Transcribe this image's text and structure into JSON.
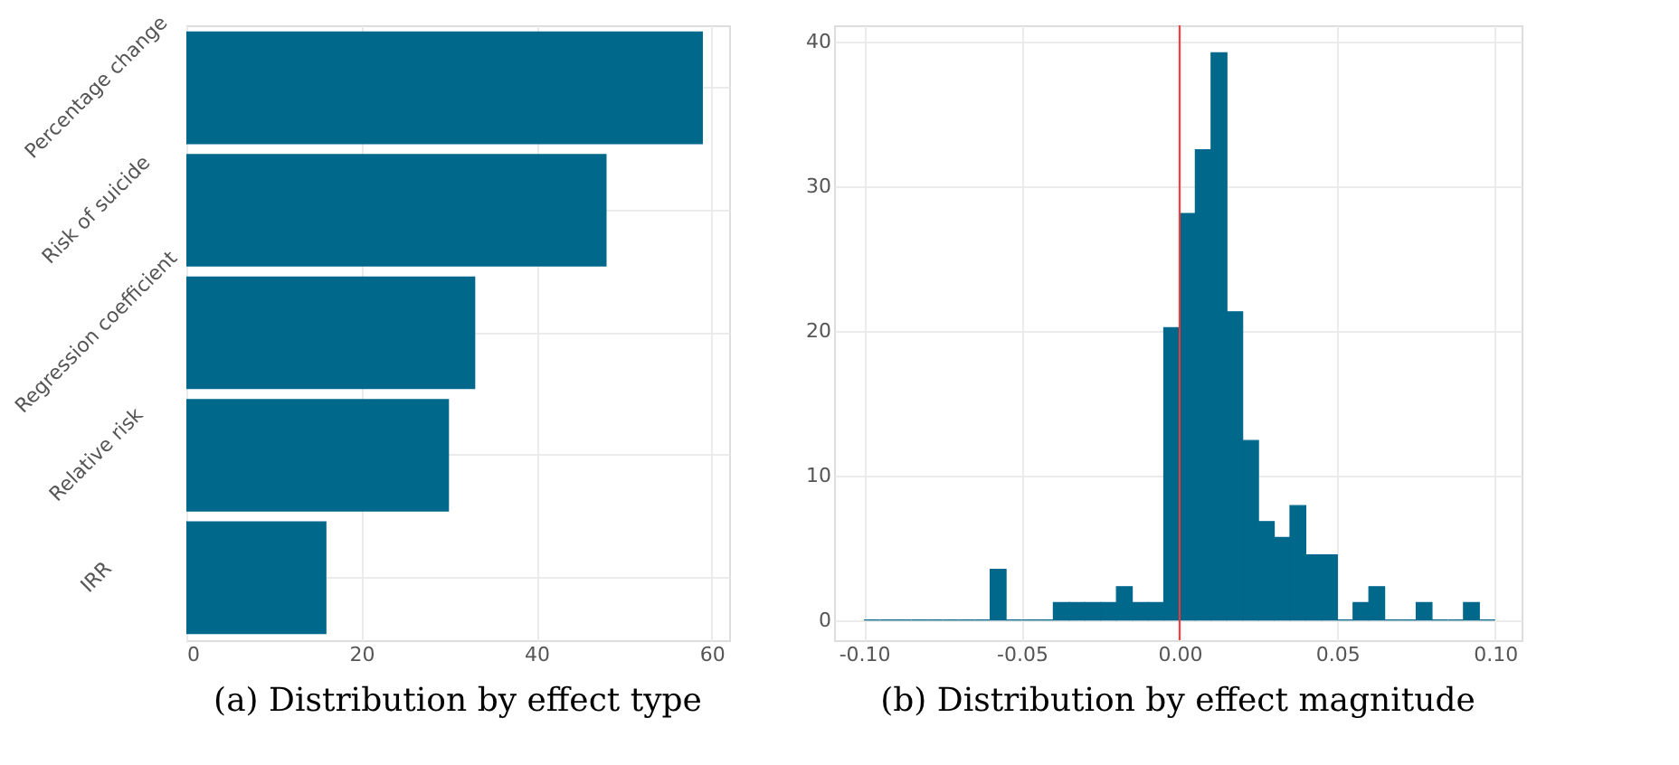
{
  "chart_data": [
    {
      "type": "bar",
      "orientation": "horizontal",
      "title": "(a) Distribution by effect type",
      "categories": [
        "Percentage change",
        "Risk of suicide",
        "Regression coefficient",
        "Relative risk",
        "IRR"
      ],
      "values": [
        59,
        48,
        33,
        30,
        16
      ],
      "color": "#00688b",
      "xlim": [
        0,
        62
      ],
      "xticks": [
        0,
        20,
        40,
        60
      ],
      "grid": true
    },
    {
      "type": "histogram",
      "title": "(b) Distribution by effect magnitude",
      "bins": [
        -0.1,
        -0.095,
        -0.09,
        -0.085,
        -0.08,
        -0.075,
        -0.07,
        -0.065,
        -0.06,
        -0.055,
        -0.05,
        -0.045,
        -0.04,
        -0.035,
        -0.03,
        -0.025,
        -0.02,
        -0.015,
        -0.01,
        -0.005,
        0.0,
        0.005,
        0.01,
        0.015,
        0.02,
        0.025,
        0.03,
        0.035,
        0.04,
        0.045,
        0.05,
        0.055,
        0.06,
        0.065,
        0.07,
        0.075,
        0.08,
        0.085,
        0.09,
        0.095,
        0.1
      ],
      "values": [
        0,
        0,
        0,
        0,
        0,
        0,
        0,
        0,
        3.5,
        0,
        0,
        0,
        1.2,
        1.2,
        1.2,
        1.2,
        2.3,
        1.2,
        1.2,
        20.2,
        28.1,
        32.5,
        39.2,
        21.3,
        12.4,
        6.8,
        5.7,
        7.9,
        4.5,
        4.5,
        0,
        1.2,
        2.3,
        0,
        0,
        1.2,
        0,
        0,
        1.2,
        0
      ],
      "color": "#00688b",
      "xlim": [
        -0.1095,
        0.1084
      ],
      "xticks": [
        {
          "value": -0.1,
          "label": "-0.10"
        },
        {
          "value": -0.05,
          "label": "-0.05"
        },
        {
          "value": 0,
          "label": "0.00"
        },
        {
          "value": 0.05,
          "label": "0.05"
        },
        {
          "value": 0.1,
          "label": "0.10"
        }
      ],
      "ylim": [
        -1.4,
        41.1
      ],
      "yticks": [
        0,
        10,
        20,
        30,
        40
      ],
      "grid": true,
      "ref_lines": [
        {
          "axis": "x",
          "value": 0,
          "color": "#ff3333"
        }
      ]
    }
  ]
}
